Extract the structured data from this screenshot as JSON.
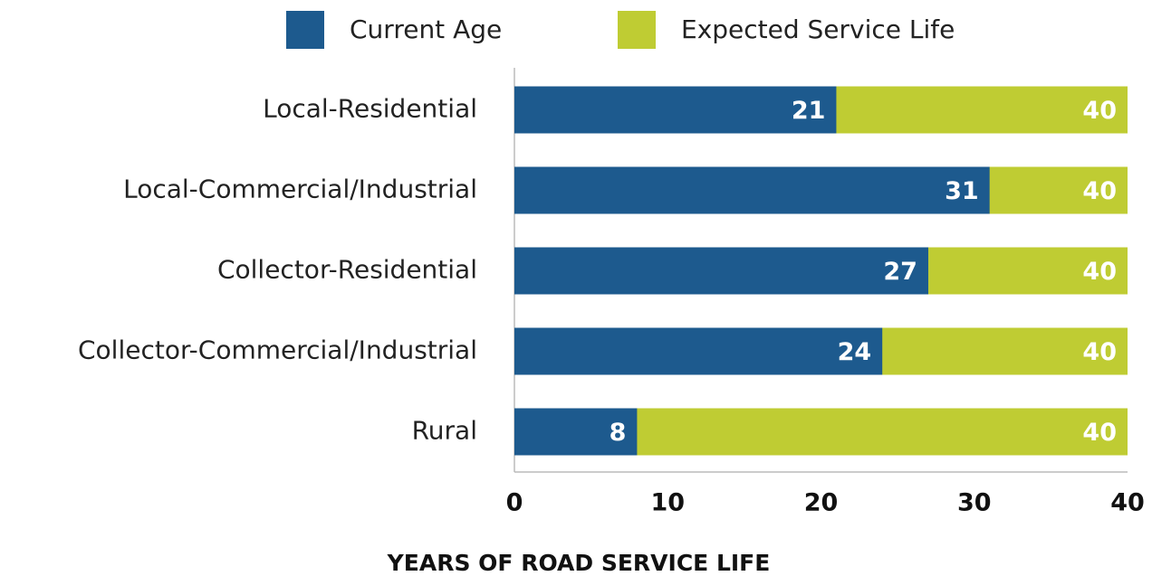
{
  "chart_data": {
    "type": "bar",
    "orientation": "horizontal",
    "barmode": "overlay",
    "x_label": "YEARS OF ROAD SERVICE LIFE",
    "categories": [
      "Local-Residential",
      "Local-Commercial/Industrial",
      "Collector-Residential",
      "Collector-Commercial/Industrial",
      "Rural"
    ],
    "series": [
      {
        "name": "Current Age",
        "color": "#1d5a8e",
        "values": [
          21,
          31,
          27,
          24,
          8
        ]
      },
      {
        "name": "Expected Service Life",
        "color": "#bfcc33",
        "values": [
          40,
          40,
          40,
          40,
          40
        ]
      }
    ],
    "xlim": [
      0,
      40
    ],
    "xticks": [
      0,
      10,
      20,
      30,
      40
    ],
    "grid": false
  }
}
